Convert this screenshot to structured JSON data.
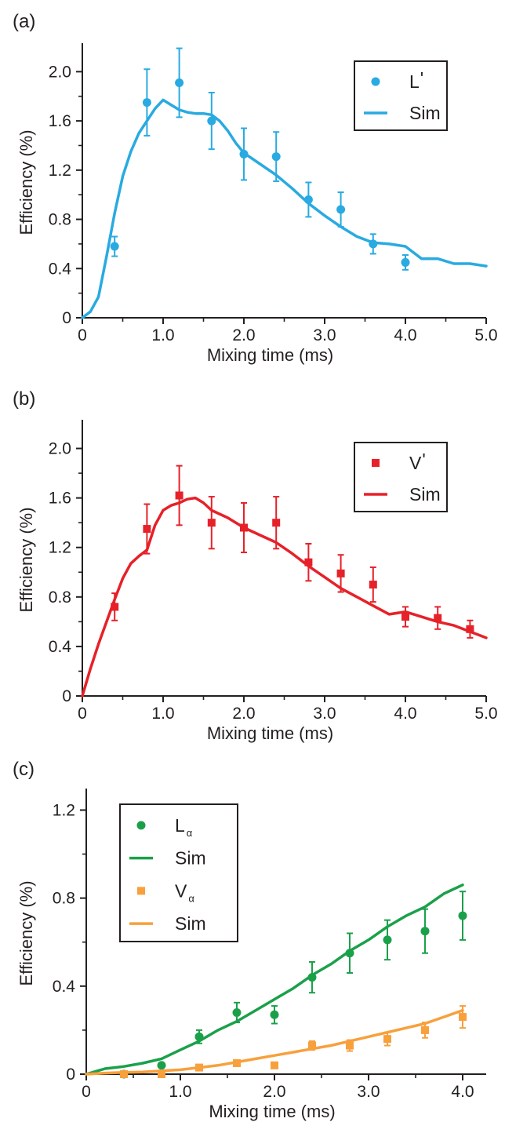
{
  "chart_data": [
    {
      "panel_label": "(a)",
      "type": "scatter",
      "xlabel": "Mixing time (ms)",
      "ylabel": "Efficiency (%)",
      "xlim": [
        0,
        5.0
      ],
      "ylim": [
        0,
        2.2
      ],
      "xticks": [
        "0",
        "1.0",
        "2.0",
        "3.0",
        "4.0",
        "5.0"
      ],
      "xtick_values": [
        0,
        1,
        2,
        3,
        4,
        5
      ],
      "yticks": [
        "0",
        "0.4",
        "0.8",
        "1.2",
        "1.6",
        "2.0"
      ],
      "ytick_values": [
        0,
        0.4,
        0.8,
        1.2,
        1.6,
        2.0
      ],
      "legend_position": "top-right",
      "series": [
        {
          "name": "L'",
          "name_main": "L",
          "name_sub": "'",
          "sub_style": "sup",
          "kind": "points",
          "marker": "circle",
          "color": "#29aae1",
          "x": [
            0.4,
            0.8,
            1.2,
            1.6,
            2.0,
            2.4,
            2.8,
            3.2,
            3.6,
            4.0
          ],
          "y": [
            0.58,
            1.75,
            1.91,
            1.6,
            1.33,
            1.31,
            0.96,
            0.88,
            0.6,
            0.45
          ],
          "err": [
            0.08,
            0.27,
            0.28,
            0.23,
            0.21,
            0.2,
            0.14,
            0.14,
            0.08,
            0.06
          ]
        },
        {
          "name": "Sim",
          "kind": "line",
          "color": "#29aae1",
          "x": [
            0,
            0.1,
            0.2,
            0.3,
            0.4,
            0.5,
            0.6,
            0.7,
            0.8,
            0.9,
            1.0,
            1.1,
            1.2,
            1.3,
            1.4,
            1.5,
            1.6,
            1.7,
            1.8,
            1.9,
            2.0,
            2.2,
            2.4,
            2.6,
            2.8,
            3.0,
            3.2,
            3.4,
            3.6,
            3.8,
            4.0,
            4.2,
            4.4,
            4.6,
            4.8,
            5.0
          ],
          "y": [
            0,
            0.05,
            0.17,
            0.5,
            0.85,
            1.15,
            1.35,
            1.5,
            1.6,
            1.7,
            1.77,
            1.73,
            1.69,
            1.67,
            1.66,
            1.66,
            1.65,
            1.6,
            1.52,
            1.42,
            1.34,
            1.25,
            1.16,
            1.05,
            0.93,
            0.83,
            0.74,
            0.66,
            0.61,
            0.6,
            0.58,
            0.48,
            0.48,
            0.44,
            0.44,
            0.42
          ]
        }
      ]
    },
    {
      "panel_label": "(b)",
      "type": "scatter",
      "xlabel": "Mixing time (ms)",
      "ylabel": "Efficiency (%)",
      "xlim": [
        0,
        5.0
      ],
      "ylim": [
        0,
        2.2
      ],
      "xticks": [
        "0",
        "1.0",
        "2.0",
        "3.0",
        "4.0",
        "5.0"
      ],
      "xtick_values": [
        0,
        1,
        2,
        3,
        4,
        5
      ],
      "yticks": [
        "0",
        "0.4",
        "0.8",
        "1.2",
        "1.6",
        "2.0"
      ],
      "ytick_values": [
        0,
        0.4,
        0.8,
        1.2,
        1.6,
        2.0
      ],
      "legend_position": "top-right",
      "series": [
        {
          "name": "V'",
          "name_main": "V",
          "name_sub": "'",
          "sub_style": "sup",
          "kind": "points",
          "marker": "square",
          "color": "#e62129",
          "x": [
            0.4,
            0.8,
            1.2,
            1.6,
            2.0,
            2.4,
            2.8,
            3.2,
            3.6,
            4.0,
            4.4,
            4.8
          ],
          "y": [
            0.72,
            1.35,
            1.62,
            1.4,
            1.36,
            1.4,
            1.08,
            0.99,
            0.9,
            0.64,
            0.63,
            0.54
          ],
          "err": [
            0.11,
            0.2,
            0.24,
            0.21,
            0.2,
            0.21,
            0.15,
            0.15,
            0.14,
            0.08,
            0.09,
            0.07
          ]
        },
        {
          "name": "Sim",
          "kind": "line",
          "color": "#e62129",
          "x": [
            0,
            0.1,
            0.2,
            0.3,
            0.4,
            0.5,
            0.6,
            0.7,
            0.8,
            0.9,
            1.0,
            1.1,
            1.2,
            1.3,
            1.4,
            1.5,
            1.6,
            1.8,
            2.0,
            2.2,
            2.4,
            2.6,
            2.8,
            3.0,
            3.2,
            3.4,
            3.6,
            3.8,
            4.0,
            4.2,
            4.4,
            4.6,
            4.8,
            5.0
          ],
          "y": [
            0,
            0.22,
            0.42,
            0.6,
            0.78,
            0.95,
            1.07,
            1.13,
            1.18,
            1.38,
            1.5,
            1.54,
            1.56,
            1.59,
            1.6,
            1.56,
            1.5,
            1.44,
            1.36,
            1.3,
            1.24,
            1.15,
            1.05,
            0.96,
            0.87,
            0.8,
            0.73,
            0.66,
            0.68,
            0.64,
            0.6,
            0.57,
            0.52,
            0.47
          ]
        }
      ]
    },
    {
      "panel_label": "(c)",
      "type": "scatter",
      "xlabel": "Mixing time (ms)",
      "ylabel": "Efficiency (%)",
      "xlim": [
        0,
        4.25
      ],
      "ylim": [
        0,
        1.28
      ],
      "xticks": [
        "0",
        "1.0",
        "2.0",
        "3.0",
        "4.0"
      ],
      "xtick_values": [
        0,
        1,
        2,
        3,
        4
      ],
      "yticks": [
        "0",
        "0.4",
        "0.8",
        "1.2"
      ],
      "ytick_values": [
        0,
        0.4,
        0.8,
        1.2
      ],
      "legend_position": "top-left",
      "series": [
        {
          "name": "Lα",
          "name_main": "L",
          "name_sub": "α",
          "sub_style": "sub",
          "kind": "points",
          "marker": "circle",
          "color": "#1ba04a",
          "x": [
            0.4,
            0.8,
            1.2,
            1.6,
            2.0,
            2.4,
            2.8,
            3.2,
            3.6,
            4.0
          ],
          "y": [
            0.0,
            0.04,
            0.17,
            0.28,
            0.27,
            0.44,
            0.55,
            0.61,
            0.65,
            0.72
          ],
          "err": [
            0,
            0,
            0.03,
            0.045,
            0.04,
            0.07,
            0.09,
            0.09,
            0.1,
            0.11
          ]
        },
        {
          "name": "Sim",
          "kind": "line",
          "color": "#1ba04a",
          "x": [
            0,
            0.2,
            0.4,
            0.6,
            0.8,
            1.0,
            1.2,
            1.4,
            1.6,
            1.8,
            2.0,
            2.2,
            2.4,
            2.6,
            2.8,
            3.0,
            3.2,
            3.4,
            3.6,
            3.8,
            4.0
          ],
          "y": [
            0,
            0.025,
            0.035,
            0.05,
            0.07,
            0.11,
            0.15,
            0.2,
            0.24,
            0.29,
            0.34,
            0.39,
            0.45,
            0.5,
            0.56,
            0.61,
            0.67,
            0.72,
            0.76,
            0.82,
            0.86
          ]
        },
        {
          "name": "Vα",
          "name_main": "V",
          "name_sub": "α",
          "sub_style": "sub",
          "kind": "points",
          "marker": "square",
          "color": "#f8a03c",
          "x": [
            0.4,
            0.8,
            1.2,
            1.6,
            2.0,
            2.4,
            2.8,
            3.2,
            3.6,
            4.0
          ],
          "y": [
            0.0,
            0.0,
            0.03,
            0.05,
            0.04,
            0.13,
            0.13,
            0.16,
            0.2,
            0.26
          ],
          "err": [
            0,
            0,
            0,
            0,
            0,
            0.02,
            0.025,
            0.03,
            0.035,
            0.05
          ]
        },
        {
          "name": "Sim",
          "kind": "line",
          "color": "#f8a03c",
          "x": [
            0,
            0.2,
            0.4,
            0.6,
            0.8,
            1.0,
            1.2,
            1.4,
            1.6,
            1.8,
            2.0,
            2.2,
            2.4,
            2.6,
            2.8,
            3.0,
            3.2,
            3.4,
            3.6,
            3.8,
            4.0
          ],
          "y": [
            0,
            0.005,
            0.008,
            0.01,
            0.015,
            0.02,
            0.03,
            0.04,
            0.055,
            0.07,
            0.085,
            0.1,
            0.115,
            0.13,
            0.15,
            0.17,
            0.19,
            0.21,
            0.23,
            0.26,
            0.29
          ]
        }
      ]
    }
  ]
}
